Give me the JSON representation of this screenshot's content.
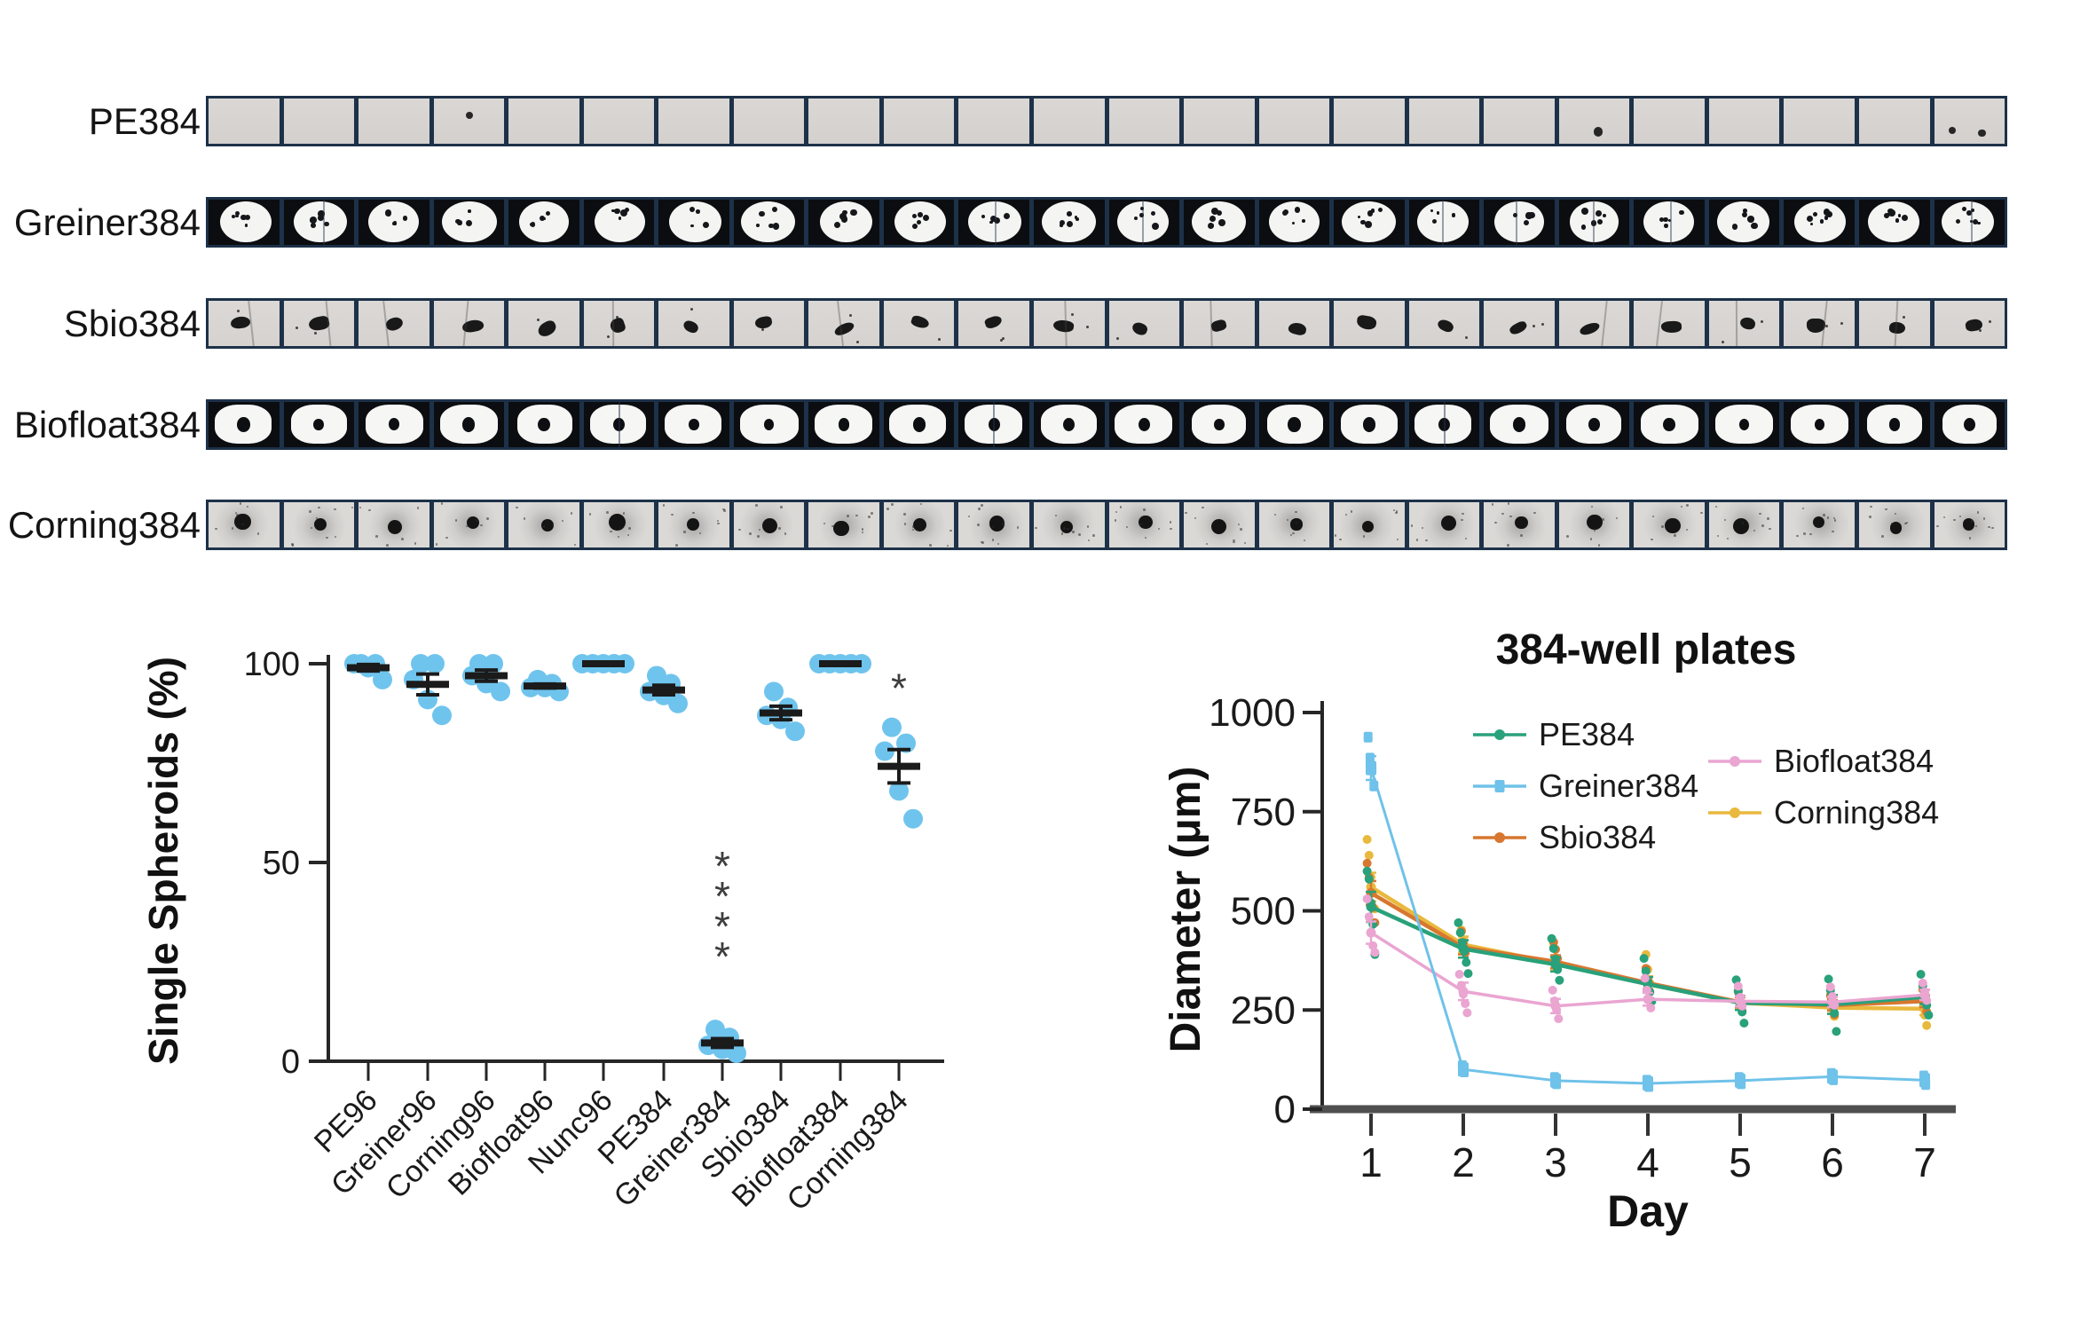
{
  "figure": {
    "background": "#ffffff",
    "accent_point_color": "#6fc4ed",
    "strip_divider_color": "#1d3148"
  },
  "strips": {
    "cell_count": 24,
    "rows": [
      {
        "label": "PE384",
        "style": "pe",
        "specks": [
          {
            "cell": 3,
            "dots": 1
          },
          {
            "cell": 18,
            "dots": 1
          },
          {
            "cell": 23,
            "dots": 2
          }
        ]
      },
      {
        "label": "Greiner384",
        "style": "greiner",
        "specks": []
      },
      {
        "label": "Sbio384",
        "style": "sbio",
        "specks": []
      },
      {
        "label": "Biofloat384",
        "style": "biofloat",
        "specks": []
      },
      {
        "label": "Corning384",
        "style": "corning",
        "specks": []
      }
    ]
  },
  "chart_data": [
    {
      "type": "scatter",
      "title": "",
      "xlabel": "",
      "ylabel": "Single Spheroids (%)",
      "ylim": [
        0,
        100
      ],
      "yticks": [
        0,
        50,
        100
      ],
      "grid": false,
      "point_color": "#6fc4ed",
      "errorbar_color": "#1b1b1b",
      "sig_color": "#3d3d3d",
      "categories": [
        "PE96",
        "Greiner96",
        "Corning96",
        "Biofloat96",
        "Nunc96",
        "PE384",
        "Greiner384",
        "Sbio384",
        "Biofloat384",
        "Corning384"
      ],
      "groups": [
        {
          "name": "PE96",
          "values": [
            100,
            100,
            100,
            99,
            96
          ],
          "mean": 99.0,
          "sem": 0.8,
          "sig": ""
        },
        {
          "name": "Greiner96",
          "values": [
            100,
            100,
            96,
            91,
            87
          ],
          "mean": 94.8,
          "sem": 2.6,
          "sig": ""
        },
        {
          "name": "Corning96",
          "values": [
            100,
            100,
            97,
            95,
            93
          ],
          "mean": 97.0,
          "sem": 1.4,
          "sig": ""
        },
        {
          "name": "Biofloat96",
          "values": [
            96,
            95,
            94,
            94,
            93
          ],
          "mean": 94.4,
          "sem": 0.5,
          "sig": ""
        },
        {
          "name": "Nunc96",
          "values": [
            100,
            100,
            100,
            100,
            100
          ],
          "mean": 100,
          "sem": 0,
          "sig": ""
        },
        {
          "name": "PE384",
          "values": [
            97,
            95,
            93,
            92,
            90
          ],
          "mean": 93.4,
          "sem": 1.2,
          "sig": ""
        },
        {
          "name": "Greiner384",
          "values": [
            8,
            6,
            4,
            3,
            2
          ],
          "mean": 4.6,
          "sem": 1.1,
          "sig": "****"
        },
        {
          "name": "Sbio384",
          "values": [
            93,
            89,
            87,
            86,
            83
          ],
          "mean": 87.6,
          "sem": 1.7,
          "sig": ""
        },
        {
          "name": "Biofloat384",
          "values": [
            100,
            100,
            100,
            100,
            100
          ],
          "mean": 100,
          "sem": 0,
          "sig": ""
        },
        {
          "name": "Corning384",
          "values": [
            84,
            80,
            78,
            68,
            61
          ],
          "mean": 74.2,
          "sem": 4.2,
          "sig": "*"
        }
      ]
    },
    {
      "type": "line",
      "title": "384-well plates",
      "xlabel": "Day",
      "ylabel": "Diameter (μm)",
      "x": [
        1,
        2,
        3,
        4,
        5,
        6,
        7
      ],
      "ylim": [
        0,
        1000
      ],
      "yticks": [
        0,
        250,
        500,
        750,
        1000
      ],
      "grid": false,
      "legend_position": "top-inside",
      "legend_columns": [
        [
          "PE384",
          "Greiner384",
          "Sbio384"
        ],
        [
          "Biofloat384",
          "Corning384"
        ]
      ],
      "series": [
        {
          "name": "PE384",
          "color": "#29a17b",
          "marker": "circle",
          "means": [
            510,
            404,
            365,
            315,
            268,
            264,
            283
          ],
          "sems": [
            38,
            22,
            18,
            18,
            18,
            24,
            18
          ],
          "points": [
            [
              600,
              580,
              520,
              466,
              390
            ],
            [
              470,
              445,
              420,
              398,
              370,
              342
            ],
            [
              430,
              405,
              378,
              352,
              325
            ],
            [
              380,
              348,
              320,
              295,
              272
            ],
            [
              326,
              298,
              270,
              245,
              217
            ],
            [
              328,
              300,
              272,
              242,
              196
            ],
            [
              340,
              312,
              286,
              262,
              237
            ]
          ]
        },
        {
          "name": "Greiner384",
          "color": "#6fc2e9",
          "marker": "square",
          "means": [
            860,
            100,
            72,
            65,
            72,
            82,
            73
          ],
          "sems": [
            30,
            10,
            8,
            8,
            8,
            8,
            10
          ],
          "points": [
            [
              938,
              885,
              858,
              815
            ],
            [
              110,
              94
            ],
            [
              80,
              64
            ],
            [
              73,
              57
            ],
            [
              80,
              64
            ],
            [
              90,
              74
            ],
            [
              84,
              62
            ]
          ]
        },
        {
          "name": "Sbio384",
          "color": "#d8772f",
          "marker": "circle",
          "means": [
            545,
            408,
            372,
            318,
            270,
            262,
            272
          ],
          "sems": [
            30,
            18,
            16,
            15,
            13,
            13,
            15
          ],
          "points": [
            [
              620,
              585,
              545,
              508,
              470
            ],
            [
              448,
              420,
              394
            ],
            [
              421,
              403,
              380
            ],
            [
              355,
              325,
              296
            ],
            [
              296,
              270,
              248
            ],
            [
              286,
              262,
              238
            ],
            [
              302,
              272,
              246
            ]
          ]
        },
        {
          "name": "Biofloat384",
          "color": "#eaa5d1",
          "marker": "circle",
          "means": [
            445,
            297,
            260,
            277,
            272,
            270,
            288
          ],
          "sems": [
            28,
            22,
            18,
            16,
            13,
            13,
            13
          ],
          "points": [
            [
              530,
              485,
              445,
              412,
              395
            ],
            [
              340,
              312,
              290,
              266,
              243
            ],
            [
              300,
              273,
              250,
              228
            ],
            [
              330,
              300,
              278,
              255
            ],
            [
              310,
              282,
              260
            ],
            [
              308,
              284,
              262
            ],
            [
              318,
              296,
              274
            ]
          ]
        },
        {
          "name": "Corning384",
          "color": "#e9b93d",
          "marker": "circle",
          "means": [
            560,
            415,
            368,
            315,
            268,
            256,
            253
          ],
          "sems": [
            36,
            20,
            17,
            20,
            14,
            14,
            16
          ],
          "points": [
            [
              680,
              640,
              585,
              545,
              505
            ],
            [
              452,
              428,
              404
            ],
            [
              408,
              382,
              356
            ],
            [
              390,
              352,
              318
            ],
            [
              298,
              270,
              246
            ],
            [
              288,
              258,
              234
            ],
            [
              255,
              237,
              211
            ]
          ]
        }
      ]
    }
  ]
}
